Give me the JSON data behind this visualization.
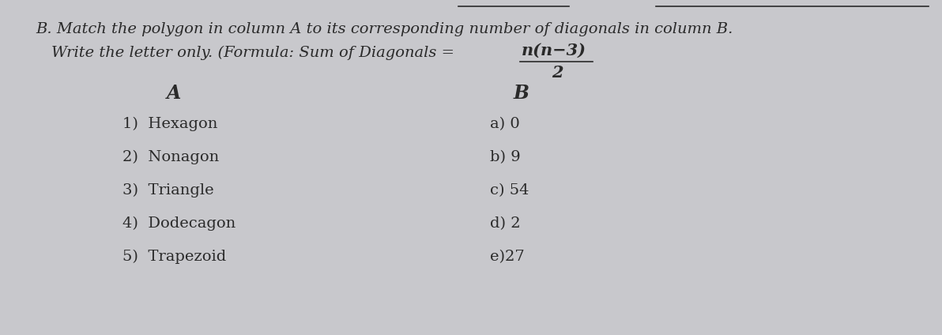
{
  "bg_color": "#c8c8cc",
  "text_color": "#2a2a2a",
  "title_line1": "B. Match the polygon in column A to its corresponding number of diagonals in column B.",
  "title_line2": "Write the letter only. (Formula: Sum of Diagonals =",
  "formula_num": "n(n−3)",
  "formula_den": "2",
  "col_a_header": "A",
  "col_b_header": "B",
  "col_a_items": [
    "1)  Hexagon",
    "2)  Nonagon",
    "3)  Triangle",
    "4)  Dodecagon",
    "5)  Trapezoid"
  ],
  "col_b_items": [
    "a) 0",
    "b) 9",
    "c) 54",
    "d) 2",
    "e)27"
  ],
  "title_fontsize": 14,
  "body_fontsize": 14,
  "header_fontsize": 15
}
